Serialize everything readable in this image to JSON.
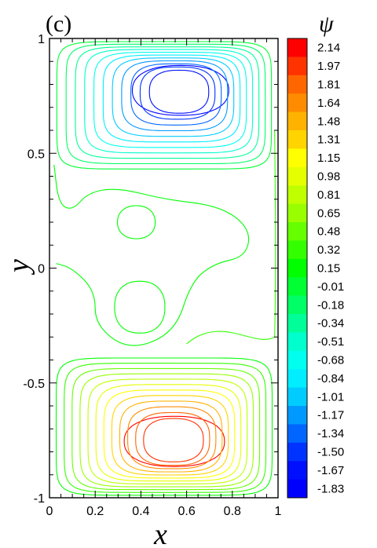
{
  "chart_data": {
    "type": "contour",
    "panel_label": "(c)",
    "xlabel": "x",
    "ylabel": "y",
    "xlim": [
      0,
      1
    ],
    "ylim": [
      -1,
      1
    ],
    "x_ticks": [
      "0",
      "0.2",
      "0.4",
      "0.6",
      "0.8",
      "1"
    ],
    "y_ticks": [
      "1",
      "0.5",
      "0",
      "-0.5",
      "-1"
    ],
    "colorbar": {
      "title": "ψ",
      "levels": [
        "2.14",
        "1.97",
        "1.81",
        "1.64",
        "1.48",
        "1.31",
        "1.15",
        "0.98",
        "0.81",
        "0.65",
        "0.48",
        "0.32",
        "0.15",
        "-0.01",
        "-0.18",
        "-0.34",
        "-0.51",
        "-0.68",
        "-0.84",
        "-1.01",
        "-1.17",
        "-1.34",
        "-1.50",
        "-1.67",
        "-1.83"
      ],
      "colors": [
        "#ff0000",
        "#ff3300",
        "#ff6600",
        "#ff8c00",
        "#ffb300",
        "#ffd400",
        "#ffff00",
        "#e6ff00",
        "#c0ff00",
        "#99ff00",
        "#66ff00",
        "#33ff00",
        "#00ff00",
        "#00ff33",
        "#00ff66",
        "#00ff99",
        "#00ffcc",
        "#00ffee",
        "#00eeff",
        "#00ccff",
        "#0099ff",
        "#0066ff",
        "#0033ff",
        "#0010ff",
        "#0000ff"
      ]
    },
    "vortices": [
      {
        "name": "upper",
        "center_x": 0.58,
        "center_y": 0.78,
        "min_level": -1.83
      },
      {
        "name": "lower",
        "center_x": 0.55,
        "center_y": -0.76,
        "max_level": 2.14
      },
      {
        "name": "middle-upper",
        "center_x": 0.38,
        "center_y": 0.2,
        "level": 0.15
      },
      {
        "name": "middle-lower",
        "center_x": 0.4,
        "center_y": -0.17,
        "level": 0.15
      }
    ]
  }
}
